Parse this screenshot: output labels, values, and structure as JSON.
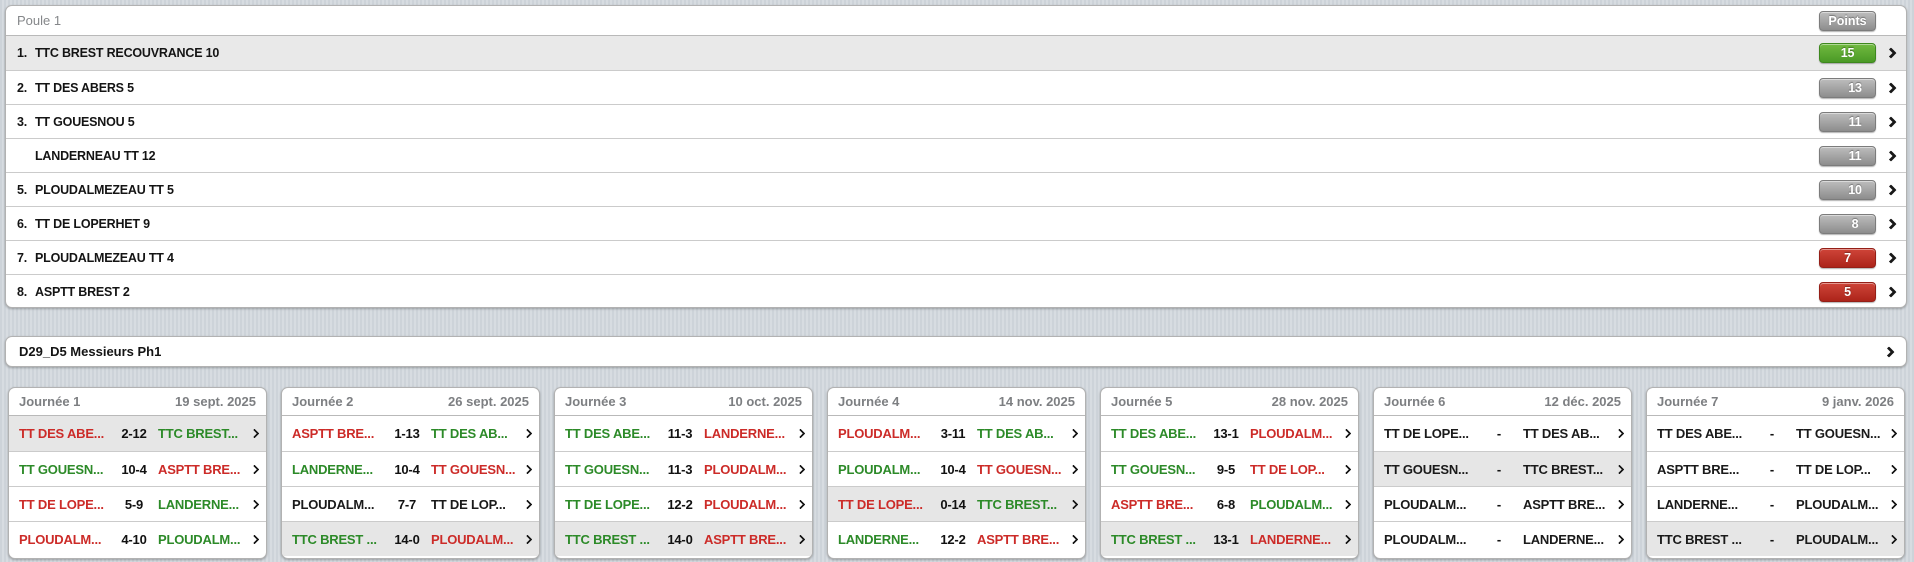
{
  "standings": {
    "title": "Poule 1",
    "points_label": "Points",
    "rows": [
      {
        "rank": "1.",
        "team": "TTC BREST RECOUVRANCE 10",
        "points": "15",
        "badge": "green",
        "selected": true
      },
      {
        "rank": "2.",
        "team": "TT DES ABERS 5",
        "points": "13",
        "badge": "gray",
        "selected": false
      },
      {
        "rank": "3.",
        "team": "TT GOUESNOU 5",
        "points": "11",
        "badge": "gray",
        "selected": false
      },
      {
        "rank": "",
        "team": "LANDERNEAU TT 12",
        "points": "11",
        "badge": "gray",
        "selected": false
      },
      {
        "rank": "5.",
        "team": "PLOUDALMEZEAU TT 5",
        "points": "10",
        "badge": "gray",
        "selected": false
      },
      {
        "rank": "6.",
        "team": "TT DE LOPERHET 9",
        "points": "8",
        "badge": "gray",
        "selected": false
      },
      {
        "rank": "7.",
        "team": "PLOUDALMEZEAU TT 4",
        "points": "7",
        "badge": "red",
        "selected": false
      },
      {
        "rank": "8.",
        "team": "ASPTT BREST 2",
        "points": "5",
        "badge": "red",
        "selected": false
      }
    ]
  },
  "league": {
    "title": "D29_D5 Messieurs Ph1"
  },
  "rounds": [
    {
      "name": "Journée 1",
      "date": "19 sept. 2025",
      "matches": [
        {
          "home": "TT DES ABE...",
          "score": "2-12",
          "away": "TTC BREST...",
          "home_res": "loss",
          "away_res": "win",
          "selected": true
        },
        {
          "home": "TT GOUESN...",
          "score": "10-4",
          "away": "ASPTT BRE...",
          "home_res": "win",
          "away_res": "loss",
          "selected": false
        },
        {
          "home": "TT DE LOPE...",
          "score": "5-9",
          "away": "LANDERNE...",
          "home_res": "loss",
          "away_res": "win",
          "selected": false
        },
        {
          "home": "PLOUDALM...",
          "score": "4-10",
          "away": "PLOUDALM...",
          "home_res": "loss",
          "away_res": "win",
          "selected": false
        }
      ]
    },
    {
      "name": "Journée 2",
      "date": "26 sept. 2025",
      "matches": [
        {
          "home": "ASPTT BRE...",
          "score": "1-13",
          "away": "TT DES AB...",
          "home_res": "loss",
          "away_res": "win",
          "selected": false
        },
        {
          "home": "LANDERNE...",
          "score": "10-4",
          "away": "TT GOUESN...",
          "home_res": "win",
          "away_res": "loss",
          "selected": false
        },
        {
          "home": "PLOUDALM...",
          "score": "7-7",
          "away": "TT DE LOP...",
          "home_res": "draw",
          "away_res": "draw",
          "selected": false
        },
        {
          "home": "TTC BREST ...",
          "score": "14-0",
          "away": "PLOUDALM...",
          "home_res": "win",
          "away_res": "loss",
          "selected": true
        }
      ]
    },
    {
      "name": "Journée 3",
      "date": "10 oct. 2025",
      "matches": [
        {
          "home": "TT DES ABE...",
          "score": "11-3",
          "away": "LANDERNE...",
          "home_res": "win",
          "away_res": "loss",
          "selected": false
        },
        {
          "home": "TT GOUESN...",
          "score": "11-3",
          "away": "PLOUDALM...",
          "home_res": "win",
          "away_res": "loss",
          "selected": false
        },
        {
          "home": "TT DE LOPE...",
          "score": "12-2",
          "away": "PLOUDALM...",
          "home_res": "win",
          "away_res": "loss",
          "selected": false
        },
        {
          "home": "TTC BREST ...",
          "score": "14-0",
          "away": "ASPTT BRE...",
          "home_res": "win",
          "away_res": "loss",
          "selected": true
        }
      ]
    },
    {
      "name": "Journée 4",
      "date": "14 nov. 2025",
      "matches": [
        {
          "home": "PLOUDALM...",
          "score": "3-11",
          "away": "TT DES AB...",
          "home_res": "loss",
          "away_res": "win",
          "selected": false
        },
        {
          "home": "PLOUDALM...",
          "score": "10-4",
          "away": "TT GOUESN...",
          "home_res": "win",
          "away_res": "loss",
          "selected": false
        },
        {
          "home": "TT DE LOPE...",
          "score": "0-14",
          "away": "TTC BREST...",
          "home_res": "loss",
          "away_res": "win",
          "selected": true
        },
        {
          "home": "LANDERNE...",
          "score": "12-2",
          "away": "ASPTT BRE...",
          "home_res": "win",
          "away_res": "loss",
          "selected": false
        }
      ]
    },
    {
      "name": "Journée 5",
      "date": "28 nov. 2025",
      "matches": [
        {
          "home": "TT DES ABE...",
          "score": "13-1",
          "away": "PLOUDALM...",
          "home_res": "win",
          "away_res": "loss",
          "selected": false
        },
        {
          "home": "TT GOUESN...",
          "score": "9-5",
          "away": "TT DE LOP...",
          "home_res": "win",
          "away_res": "loss",
          "selected": false
        },
        {
          "home": "ASPTT BRE...",
          "score": "6-8",
          "away": "PLOUDALM...",
          "home_res": "loss",
          "away_res": "win",
          "selected": false
        },
        {
          "home": "TTC BREST ...",
          "score": "13-1",
          "away": "LANDERNE...",
          "home_res": "win",
          "away_res": "loss",
          "selected": true
        }
      ]
    },
    {
      "name": "Journée 6",
      "date": "12 déc. 2025",
      "matches": [
        {
          "home": "TT DE LOPE...",
          "score": "-",
          "away": "TT DES AB...",
          "home_res": "none",
          "away_res": "none",
          "selected": false
        },
        {
          "home": "TT GOUESN...",
          "score": "-",
          "away": "TTC BREST...",
          "home_res": "none",
          "away_res": "none",
          "selected": true
        },
        {
          "home": "PLOUDALM...",
          "score": "-",
          "away": "ASPTT BRE...",
          "home_res": "none",
          "away_res": "none",
          "selected": false
        },
        {
          "home": "PLOUDALM...",
          "score": "-",
          "away": "LANDERNE...",
          "home_res": "none",
          "away_res": "none",
          "selected": false
        }
      ]
    },
    {
      "name": "Journée 7",
      "date": "9 janv. 2026",
      "matches": [
        {
          "home": "TT DES ABE...",
          "score": "-",
          "away": "TT GOUESN...",
          "home_res": "none",
          "away_res": "none",
          "selected": false
        },
        {
          "home": "ASPTT BRE...",
          "score": "-",
          "away": "TT DE LOP...",
          "home_res": "none",
          "away_res": "none",
          "selected": false
        },
        {
          "home": "LANDERNE...",
          "score": "-",
          "away": "PLOUDALM...",
          "home_res": "none",
          "away_res": "none",
          "selected": false
        },
        {
          "home": "TTC BREST ...",
          "score": "-",
          "away": "PLOUDALM...",
          "home_res": "none",
          "away_res": "none",
          "selected": true
        }
      ]
    }
  ],
  "colors": {
    "win_text": "#2c8a28",
    "loss_text": "#cc2b28",
    "badge_green": "#4b9a26",
    "badge_red": "#ac241a",
    "badge_gray": "#8d8d8d",
    "selected_row_bg": "#e9e9e9"
  }
}
